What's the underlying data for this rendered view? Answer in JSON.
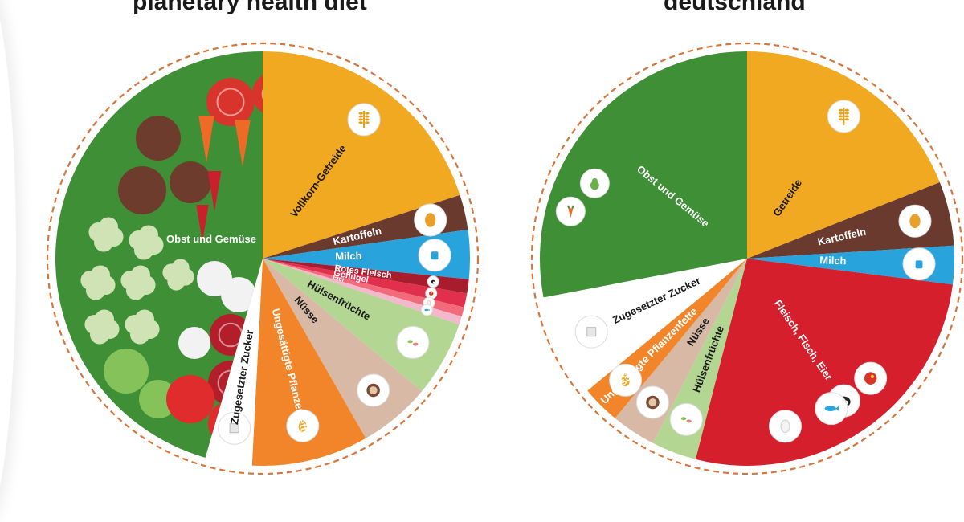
{
  "chart_data": [
    {
      "type": "pie",
      "title": "planetary health diet",
      "slices": [
        {
          "label": "Vollkorn-Getreide",
          "value": 22.0,
          "color": "#f2a922",
          "text_color": "#1a1a1a",
          "icon": "wheat-icon"
        },
        {
          "label": "Kartoffeln",
          "value": 3.0,
          "color": "#6b3a2e",
          "text_color": "#ffffff",
          "icon": "potato-icon"
        },
        {
          "label": "Milch",
          "value": 4.2,
          "color": "#29a3dc",
          "text_color": "#ffffff",
          "icon": "milk-icon"
        },
        {
          "label": "Rotes Fleisch",
          "value": 1.2,
          "color": "#a81d2e",
          "text_color": "#ffffff",
          "icon": "cow-icon"
        },
        {
          "label": "Geflügel",
          "value": 1.2,
          "color": "#e0304e",
          "text_color": "#ffffff",
          "icon": "chicken-icon"
        },
        {
          "label": "Eier",
          "value": 0.8,
          "color": "#f26b7a",
          "text_color": "#ffffff",
          "icon": "egg-icon"
        },
        {
          "label": "",
          "value": 0.7,
          "color": "#f4b8cc",
          "text_color": "#ffffff",
          "icon": "fish-icon"
        },
        {
          "label": "Hülsenfrüchte",
          "value": 6.5,
          "color": "#b3d792",
          "text_color": "#1a1a1a",
          "icon": "beans-icon"
        },
        {
          "label": "Nüsse",
          "value": 6.2,
          "color": "#d7b9a6",
          "text_color": "#1a1a1a",
          "icon": "walnut-icon"
        },
        {
          "label": "Ungesättigte Pflanzenfette",
          "value": 10.0,
          "color": "#f2852a",
          "text_color": "#ffffff",
          "icon": "oil-drop-icon"
        },
        {
          "label": "Zugesetzter Zucker",
          "value": 4.0,
          "color": "#ffffff",
          "text_color": "#1a1a1a",
          "icon": "sugar-icon"
        },
        {
          "label": "Obst und Gemüse",
          "value": 50.0,
          "color": "#3f8f37",
          "text_color": "#ffffff",
          "icon": "vegetables-icon"
        }
      ]
    },
    {
      "type": "pie",
      "title": "deutschland",
      "slices": [
        {
          "label": "Getreide",
          "value": 19.0,
          "color": "#f2a922",
          "text_color": "#1a1a1a",
          "icon": "wheat-icon"
        },
        {
          "label": "Kartoffeln",
          "value": 5.0,
          "color": "#6b3a2e",
          "text_color": "#ffffff",
          "icon": "potato-icon"
        },
        {
          "label": "Milch",
          "value": 3.0,
          "color": "#29a3dc",
          "text_color": "#ffffff",
          "icon": "milk-icon"
        },
        {
          "label": "Fleisch, Fisch, Eier",
          "value": 27.0,
          "color": "#d61f2c",
          "text_color": "#ffffff",
          "icon": "cow-icon"
        },
        {
          "label": "Hülsenfrüchte",
          "value": 3.5,
          "color": "#b3d792",
          "text_color": "#1a1a1a",
          "icon": "beans-icon"
        },
        {
          "label": "Nüsse",
          "value": 3.5,
          "color": "#d7b9a6",
          "text_color": "#1a1a1a",
          "icon": "walnut-icon"
        },
        {
          "label": "Ungesättigte Pflanzenfette",
          "value": 3.0,
          "color": "#f2852a",
          "text_color": "#ffffff",
          "icon": "oil-drop-icon"
        },
        {
          "label": "Zugesetzter Zucker",
          "value": 8.0,
          "color": "#ffffff",
          "text_color": "#1a1a1a",
          "icon": "sugar-icon"
        },
        {
          "label": "Obst und Gemüse",
          "value": 28.0,
          "color": "#3f8f37",
          "text_color": "#ffffff",
          "icon": "vegetables-icon"
        }
      ]
    }
  ]
}
